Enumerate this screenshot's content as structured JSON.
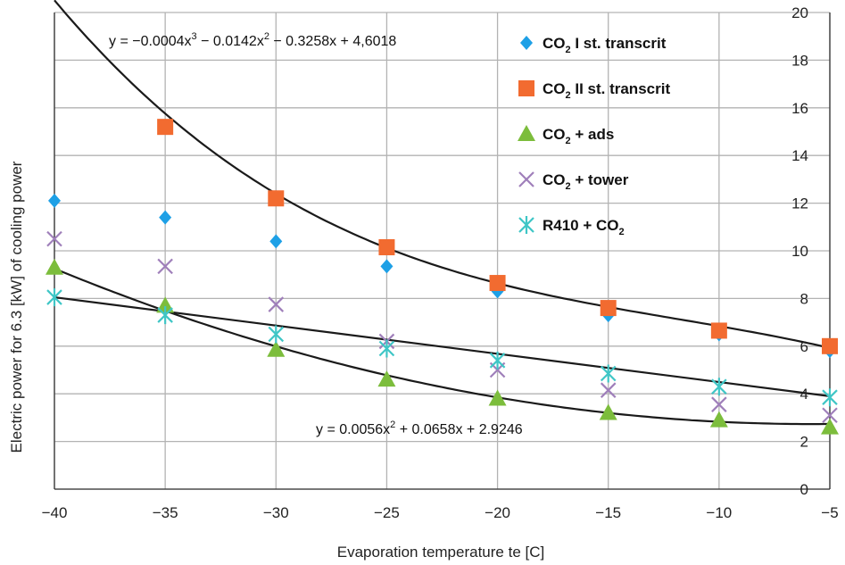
{
  "chart_data": {
    "type": "scatter",
    "title": "",
    "xlabel": "Evaporation temperature te [C]",
    "ylabel": "Electric power for 6.3 [kW] of cooling power",
    "x": [
      -40,
      -35,
      -30,
      -25,
      -20,
      -15,
      -10,
      -5
    ],
    "x_tick_labels": [
      "−40",
      "−35",
      "−30",
      "−25",
      "−20",
      "−15",
      "−10",
      "−5"
    ],
    "xlim": [
      -40,
      -5
    ],
    "ylim": [
      0,
      20
    ],
    "y_ticks": [
      0,
      2,
      4,
      6,
      8,
      10,
      12,
      14,
      16,
      18,
      20
    ],
    "grid": true,
    "legend_position": "top-right",
    "colors": {
      "co2_1st": "#1ea0e6",
      "co2_2st": "#f26b30",
      "co2_ads": "#7cbd3c",
      "co2_tower": "#9f7fba",
      "r410_co2": "#3fc6c6",
      "trend": "#1a1a1a",
      "grid": "#b3b3b3"
    },
    "series": [
      {
        "key": "co2_1st",
        "name_main": "CO",
        "name_sub": "2",
        "name_rest": " I st. transcrit",
        "marker": "diamond",
        "values": [
          12.1,
          11.4,
          10.4,
          9.35,
          8.3,
          7.3,
          6.5,
          5.8
        ]
      },
      {
        "key": "co2_2st",
        "name_main": "CO",
        "name_sub": "2",
        "name_rest": " II st. transcrit",
        "marker": "square",
        "values": [
          null,
          15.2,
          12.2,
          10.15,
          8.65,
          7.6,
          6.65,
          6.0
        ]
      },
      {
        "key": "co2_ads",
        "name_main": "CO",
        "name_sub": "2",
        "name_rest": " + ads",
        "marker": "triangle",
        "values": [
          9.3,
          7.7,
          5.85,
          4.6,
          3.8,
          3.2,
          2.9,
          2.6
        ]
      },
      {
        "key": "co2_tower",
        "name_main": "CO",
        "name_sub": "2",
        "name_rest": " + tower",
        "marker": "x",
        "values": [
          10.5,
          9.35,
          7.75,
          6.2,
          5.0,
          4.15,
          3.55,
          3.1
        ]
      },
      {
        "key": "r410_co2",
        "name_main": "R410 + CO",
        "name_sub": "2",
        "name_rest": "",
        "marker": "asterisk",
        "values": [
          8.05,
          7.3,
          6.5,
          5.9,
          5.4,
          4.85,
          4.3,
          3.85
        ]
      }
    ],
    "trendlines": [
      {
        "key": "cubic",
        "coeffs": [
          -0.0004,
          -0.0142,
          -0.3258,
          4.6018
        ]
      },
      {
        "key": "quad",
        "coeffs": [
          0.0056,
          0.0658,
          2.9246
        ]
      },
      {
        "key": "linear",
        "from": [
          -40,
          8.05
        ],
        "to": [
          -5,
          3.9
        ]
      }
    ],
    "equations": {
      "cubic": {
        "p1": "y = −0.0004x",
        "s1": "3",
        "p2": " − 0.0142x",
        "s2": "2",
        "p3": " − 0.3258x + 4,6018"
      },
      "quad": {
        "p1": "y = 0.0056x",
        "s1": "2",
        "p2": " + 0.0658x + 2.9246"
      }
    }
  }
}
